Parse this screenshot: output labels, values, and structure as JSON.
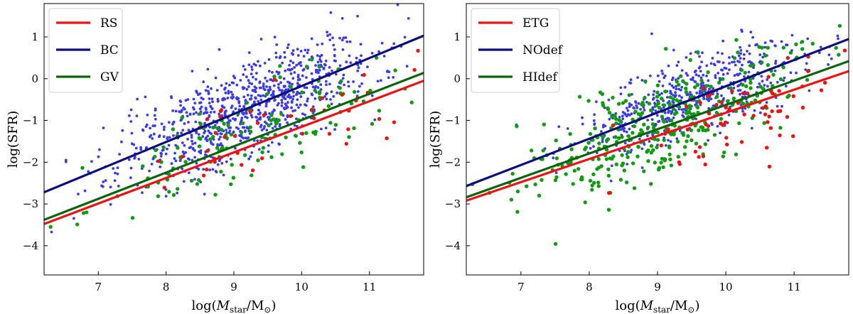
{
  "chart_data": [
    {
      "type": "scatter",
      "xlabel": "log(M_star/M_⊙)",
      "ylabel": "log(SFR)",
      "xlabel_main": "log(",
      "xlabel_M": "M",
      "xlabel_sub": "star",
      "xlabel_mid": "/M",
      "xlabel_sub2": "⊙",
      "xlabel_end": ")",
      "xlim": [
        6.2,
        11.8
      ],
      "ylim": [
        -4.7,
        1.8
      ],
      "xticks": [
        "7",
        "8",
        "9",
        "10",
        "11"
      ],
      "yticks": [
        "−4",
        "−3",
        "−2",
        "−1",
        "0",
        "1"
      ],
      "legend_position": "top-left",
      "lines": [
        {
          "name": "RS",
          "color": "#ee1111",
          "x": [
            6.2,
            11.8
          ],
          "y": [
            -3.48,
            -0.05
          ]
        },
        {
          "name": "BC",
          "color": "#0c0c7a",
          "x": [
            6.2,
            11.8
          ],
          "y": [
            -2.72,
            1.03
          ]
        },
        {
          "name": "GV",
          "color": "#0b640b",
          "x": [
            6.2,
            11.8
          ],
          "y": [
            -3.38,
            0.14
          ]
        }
      ],
      "point_groups": [
        {
          "name": "BC",
          "color": "#3a3ae6",
          "seed": 11,
          "n": 900,
          "slope": 0.67,
          "intercept": -6.85,
          "sx": 0.95,
          "sy": 0.55,
          "xc": 9.2,
          "r": 1.9
        },
        {
          "name": "GV",
          "color": "#119b11",
          "seed": 23,
          "n": 140,
          "slope": 0.63,
          "intercept": -7.2,
          "sx": 1.1,
          "sy": 0.55,
          "xc": 9.1,
          "r": 2.7
        },
        {
          "name": "RS",
          "color": "#ee1111",
          "seed": 37,
          "n": 45,
          "slope": 0.6,
          "intercept": -7.0,
          "sx": 0.9,
          "sy": 0.5,
          "xc": 9.8,
          "r": 2.7
        }
      ]
    },
    {
      "type": "scatter",
      "xlabel": "log(M_star/M_⊙)",
      "ylabel": "log(SFR)",
      "xlabel_main": "log(",
      "xlabel_M": "M",
      "xlabel_sub": "star",
      "xlabel_mid": "/M",
      "xlabel_sub2": "⊙",
      "xlabel_end": ")",
      "xlim": [
        6.2,
        11.8
      ],
      "ylim": [
        -4.7,
        1.8
      ],
      "xticks": [
        "7",
        "8",
        "9",
        "10",
        "11"
      ],
      "yticks": [
        "−4",
        "−3",
        "−2",
        "−1",
        "0",
        "1"
      ],
      "legend_position": "top-left",
      "lines": [
        {
          "name": "ETG",
          "color": "#ee1111",
          "x": [
            6.2,
            11.8
          ],
          "y": [
            -2.92,
            0.18
          ]
        },
        {
          "name": "NOdef",
          "color": "#0c0c7a",
          "x": [
            6.2,
            11.8
          ],
          "y": [
            -2.57,
            0.95
          ]
        },
        {
          "name": "HIdef",
          "color": "#0b640b",
          "x": [
            6.2,
            11.8
          ],
          "y": [
            -2.84,
            0.42
          ]
        }
      ],
      "point_groups": [
        {
          "name": "NOdef",
          "color": "#3a3ae6",
          "seed": 51,
          "n": 560,
          "slope": 0.63,
          "intercept": -6.45,
          "sx": 0.85,
          "sy": 0.5,
          "xc": 9.5,
          "r": 1.9
        },
        {
          "name": "HIdef",
          "color": "#119b11",
          "seed": 67,
          "n": 360,
          "slope": 0.58,
          "intercept": -6.45,
          "sx": 1.0,
          "sy": 0.55,
          "xc": 9.0,
          "r": 2.7
        },
        {
          "name": "ETG",
          "color": "#ee1111",
          "seed": 79,
          "n": 70,
          "slope": 0.55,
          "intercept": -6.4,
          "sx": 0.75,
          "sy": 0.5,
          "xc": 10.2,
          "r": 2.7
        }
      ]
    }
  ]
}
